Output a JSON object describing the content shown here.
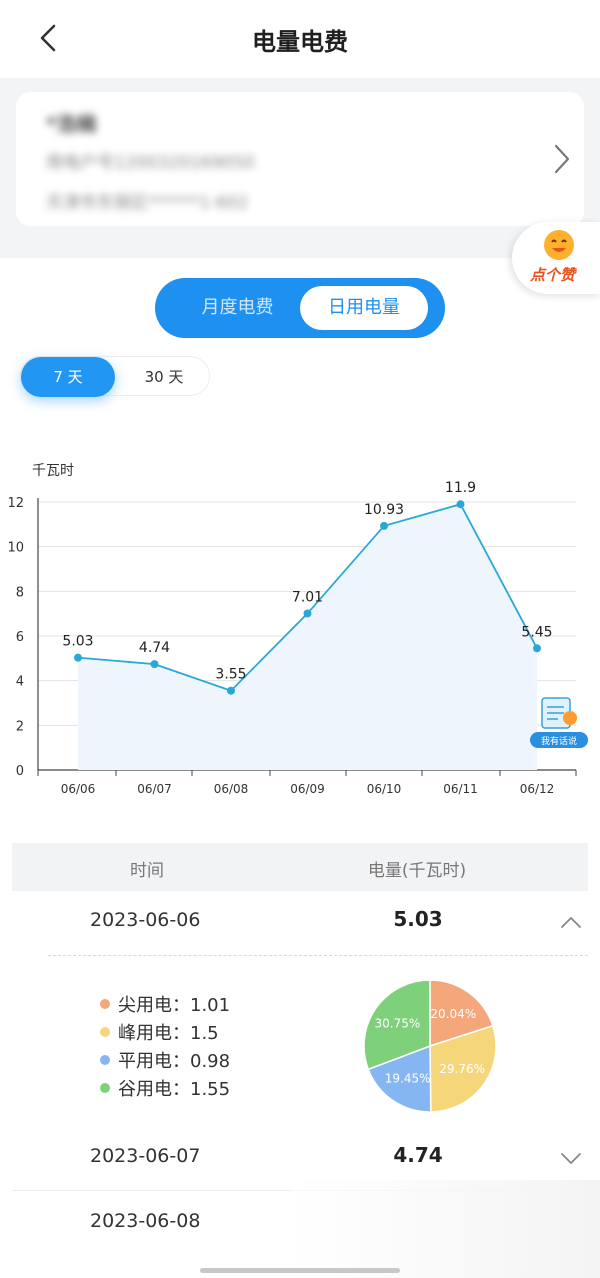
{
  "header": {
    "title": "电量电费",
    "back_icon": "chevron-left-icon"
  },
  "account": {
    "name": "*浩楠",
    "account_no": "用电户号1200320169050",
    "address": "天津市东丽区******1-602"
  },
  "like_badge": {
    "label": "点个赞",
    "icon": "smiley-face-icon"
  },
  "tabs": {
    "monthly": "月度电费",
    "daily": "日用电量",
    "active": "daily"
  },
  "range": {
    "seven": "7 天",
    "thirty": "30 天",
    "active": "seven"
  },
  "chart_data": {
    "type": "area",
    "ylabel": "千瓦时",
    "categories": [
      "06/06",
      "06/07",
      "06/08",
      "06/09",
      "06/10",
      "06/11",
      "06/12"
    ],
    "values": [
      5.03,
      4.74,
      3.55,
      7.01,
      10.93,
      11.9,
      5.45
    ],
    "value_labels": [
      "5.03",
      "4.74",
      "3.55",
      "7.01",
      "10.93",
      "11.9",
      "5.45"
    ],
    "yticks": [
      "0",
      "2",
      "4",
      "6",
      "8",
      "10",
      "12"
    ],
    "ylim": [
      0,
      12
    ],
    "grid": true,
    "line_color": "#29a8d8",
    "fill_color": "#eef5fd"
  },
  "feedback": {
    "label": "我有话说"
  },
  "table": {
    "header_time": "时间",
    "header_power": "电量(千瓦时)",
    "rows": [
      {
        "date": "2023-06-06",
        "value": "5.03",
        "expanded": true
      },
      {
        "date": "2023-06-07",
        "value": "4.74",
        "expanded": false
      },
      {
        "date": "2023-06-08",
        "value": "",
        "expanded": false
      }
    ]
  },
  "breakdown": {
    "items": [
      {
        "label": "尖用电：1.01",
        "color": "#f4a77a"
      },
      {
        "label": "峰用电：1.5",
        "color": "#f6d67a"
      },
      {
        "label": "平用电：0.98",
        "color": "#86b6f2"
      },
      {
        "label": "谷用电：1.55",
        "color": "#7fd07a"
      }
    ],
    "pie": [
      {
        "name": "尖用电",
        "value": 1.01,
        "percent_label": "20.04%",
        "color": "#f4a77a"
      },
      {
        "name": "峰用电",
        "value": 1.5,
        "percent_label": "29.76%",
        "color": "#f6d67a"
      },
      {
        "name": "平用电",
        "value": 0.98,
        "percent_label": "19.45%",
        "color": "#86b6f2"
      },
      {
        "name": "谷用电",
        "value": 1.55,
        "percent_label": "30.75%",
        "color": "#7fd07a"
      }
    ]
  }
}
